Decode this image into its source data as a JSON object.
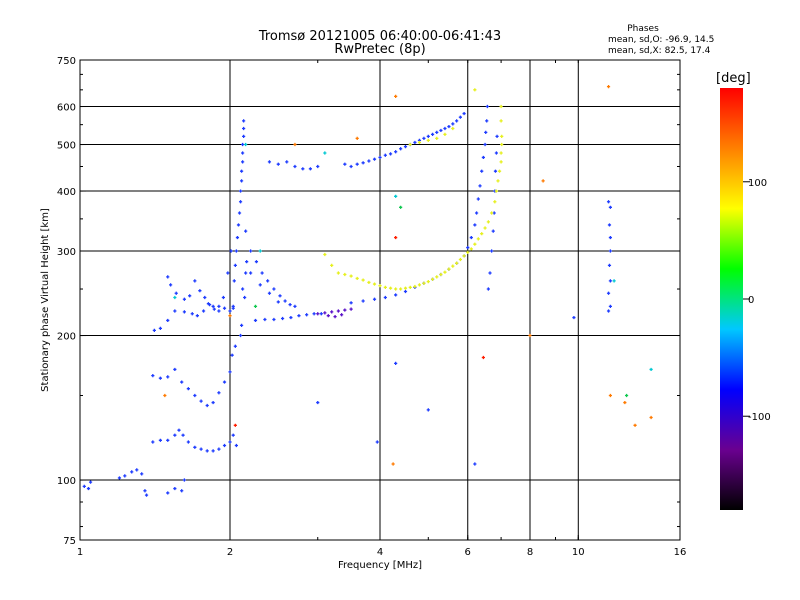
{
  "chart_data": {
    "type": "scatter",
    "title_lines": [
      "Tromsø 20121005 06:40:00-06:41:43",
      "RwPretec (8p)"
    ],
    "xlabel": "Frequency [MHz]",
    "ylabel": "Stationary phase Virtual Height [km]",
    "x_scale": "log",
    "y_scale": "log",
    "xlim": [
      1,
      16
    ],
    "ylim": [
      75,
      750
    ],
    "x_ticks": [
      {
        "value": 1,
        "label": "1"
      },
      {
        "value": 2,
        "label": "2"
      },
      {
        "value": 4,
        "label": "4"
      },
      {
        "value": 6,
        "label": "6"
      },
      {
        "value": 8,
        "label": "8"
      },
      {
        "value": 10,
        "label": "10"
      },
      {
        "value": 16,
        "label": "16"
      }
    ],
    "y_ticks": [
      {
        "value": 75,
        "label": "75"
      },
      {
        "value": 100,
        "label": "100"
      },
      {
        "value": 200,
        "label": "200"
      },
      {
        "value": 300,
        "label": "300"
      },
      {
        "value": 400,
        "label": "400"
      },
      {
        "value": 500,
        "label": "500"
      },
      {
        "value": 600,
        "label": "600"
      },
      {
        "value": 750,
        "label": "750"
      }
    ],
    "x_grid": [
      2,
      4,
      6,
      8,
      10
    ],
    "y_grid": [
      100,
      200,
      300,
      400,
      500,
      600
    ],
    "grid": true,
    "phase_stats": {
      "heading": "Phases",
      "line_o": "mean, sd,O: -96.9, 14.5",
      "line_x": "mean, sd,X:  82.5, 17.4"
    },
    "colorbar": {
      "label": "[deg]",
      "range": [
        -180,
        180
      ],
      "ticks": [
        {
          "value": 100,
          "label": "100"
        },
        {
          "value": 0,
          "label": "0"
        },
        {
          "value": -100,
          "label": "-100"
        }
      ],
      "colors": [
        "#000000",
        "#6a0090",
        "#0000ff",
        "#00c8ff",
        "#00ff00",
        "#ffff00",
        "#ff8000",
        "#ff0000"
      ]
    },
    "series": [
      {
        "phase": -100,
        "color": "#1e3cff",
        "points": [
          [
            1.02,
            97
          ],
          [
            1.04,
            96
          ],
          [
            1.05,
            99
          ],
          [
            1.2,
            101
          ],
          [
            1.23,
            102
          ],
          [
            1.27,
            104
          ],
          [
            1.3,
            105
          ],
          [
            1.33,
            103
          ],
          [
            1.35,
            95
          ],
          [
            1.36,
            93
          ],
          [
            1.5,
            94
          ],
          [
            1.55,
            96
          ],
          [
            1.6,
            95
          ],
          [
            1.62,
            100
          ],
          [
            1.4,
            120
          ],
          [
            1.45,
            121
          ],
          [
            1.5,
            121
          ],
          [
            1.55,
            124
          ],
          [
            1.58,
            127
          ],
          [
            1.61,
            124
          ],
          [
            1.65,
            120
          ],
          [
            1.7,
            117
          ],
          [
            1.75,
            116
          ],
          [
            1.8,
            115
          ],
          [
            1.85,
            115
          ],
          [
            1.9,
            116
          ],
          [
            1.95,
            118
          ],
          [
            2.0,
            120
          ],
          [
            2.03,
            124
          ],
          [
            2.06,
            118
          ],
          [
            1.4,
            165
          ],
          [
            1.45,
            163
          ],
          [
            1.5,
            164
          ],
          [
            1.55,
            170
          ],
          [
            1.6,
            160
          ],
          [
            1.65,
            155
          ],
          [
            1.7,
            150
          ],
          [
            1.75,
            146
          ],
          [
            1.8,
            143
          ],
          [
            1.85,
            145
          ],
          [
            1.9,
            152
          ],
          [
            1.95,
            160
          ],
          [
            2.0,
            168
          ],
          [
            2.02,
            182
          ],
          [
            2.05,
            190
          ],
          [
            1.41,
            205
          ],
          [
            1.45,
            207
          ],
          [
            1.5,
            215
          ],
          [
            1.55,
            225
          ],
          [
            1.62,
            224
          ],
          [
            1.68,
            222
          ],
          [
            1.72,
            220
          ],
          [
            1.77,
            225
          ],
          [
            1.81,
            233
          ],
          [
            1.85,
            230
          ],
          [
            1.9,
            225
          ],
          [
            1.95,
            228
          ],
          [
            2.0,
            225
          ],
          [
            2.03,
            228
          ],
          [
            1.5,
            265
          ],
          [
            1.52,
            255
          ],
          [
            1.56,
            245
          ],
          [
            1.62,
            238
          ],
          [
            1.66,
            242
          ],
          [
            1.7,
            260
          ],
          [
            1.74,
            248
          ],
          [
            1.78,
            240
          ],
          [
            1.82,
            232
          ],
          [
            1.86,
            227
          ],
          [
            1.9,
            230
          ],
          [
            1.94,
            240
          ],
          [
            1.98,
            270
          ],
          [
            2.01,
            300
          ],
          [
            2.03,
            230
          ],
          [
            2.04,
            260
          ],
          [
            2.05,
            280
          ],
          [
            2.06,
            300
          ],
          [
            2.07,
            320
          ],
          [
            2.08,
            340
          ],
          [
            2.09,
            360
          ],
          [
            2.1,
            380
          ],
          [
            2.1,
            400
          ],
          [
            2.11,
            420
          ],
          [
            2.11,
            440
          ],
          [
            2.12,
            460
          ],
          [
            2.12,
            480
          ],
          [
            2.12,
            500
          ],
          [
            2.13,
            520
          ],
          [
            2.13,
            540
          ],
          [
            2.13,
            560
          ],
          [
            2.12,
            250
          ],
          [
            2.14,
            240
          ],
          [
            2.15,
            270
          ],
          [
            2.16,
            285
          ],
          [
            2.1,
            200
          ],
          [
            2.11,
            210
          ],
          [
            2.15,
            330
          ],
          [
            2.2,
            300
          ],
          [
            2.26,
            285
          ],
          [
            2.32,
            270
          ],
          [
            2.38,
            260
          ],
          [
            2.45,
            250
          ],
          [
            2.52,
            242
          ],
          [
            2.58,
            236
          ],
          [
            2.64,
            232
          ],
          [
            2.7,
            230
          ],
          [
            2.2,
            270
          ],
          [
            2.3,
            255
          ],
          [
            2.4,
            245
          ],
          [
            2.5,
            235
          ],
          [
            2.25,
            215
          ],
          [
            2.35,
            216
          ],
          [
            2.45,
            216
          ],
          [
            2.55,
            217
          ],
          [
            2.65,
            218
          ],
          [
            2.75,
            220
          ],
          [
            2.85,
            221
          ],
          [
            2.95,
            222
          ],
          [
            3.05,
            222
          ],
          [
            2.4,
            460
          ],
          [
            2.5,
            455
          ],
          [
            2.6,
            460
          ],
          [
            2.7,
            450
          ],
          [
            2.8,
            445
          ],
          [
            2.9,
            445
          ],
          [
            3.0,
            450
          ],
          [
            3.4,
            455
          ],
          [
            3.5,
            450
          ],
          [
            3.6,
            455
          ],
          [
            3.7,
            458
          ],
          [
            3.8,
            462
          ],
          [
            3.9,
            466
          ],
          [
            4.0,
            470
          ],
          [
            4.1,
            475
          ],
          [
            4.2,
            478
          ],
          [
            4.3,
            483
          ],
          [
            4.4,
            490
          ],
          [
            4.5,
            495
          ],
          [
            4.6,
            500
          ],
          [
            4.7,
            505
          ],
          [
            4.8,
            510
          ],
          [
            4.9,
            515
          ],
          [
            5.0,
            520
          ],
          [
            5.1,
            525
          ],
          [
            5.2,
            530
          ],
          [
            5.3,
            535
          ],
          [
            5.4,
            540
          ],
          [
            5.5,
            545
          ],
          [
            5.6,
            552
          ],
          [
            5.7,
            560
          ],
          [
            5.8,
            570
          ],
          [
            5.9,
            580
          ],
          [
            3.5,
            234
          ],
          [
            3.7,
            236
          ],
          [
            3.9,
            238
          ],
          [
            4.1,
            240
          ],
          [
            4.3,
            243
          ],
          [
            4.5,
            247
          ],
          [
            4.7,
            252
          ],
          [
            4.9,
            257
          ],
          [
            5.1,
            262
          ],
          [
            5.3,
            268
          ],
          [
            5.5,
            275
          ],
          [
            5.7,
            283
          ],
          [
            5.9,
            293
          ],
          [
            6.0,
            305
          ],
          [
            6.1,
            320
          ],
          [
            6.2,
            340
          ],
          [
            6.25,
            360
          ],
          [
            6.3,
            385
          ],
          [
            6.35,
            410
          ],
          [
            6.4,
            440
          ],
          [
            6.45,
            470
          ],
          [
            6.5,
            500
          ],
          [
            6.52,
            530
          ],
          [
            6.55,
            560
          ],
          [
            6.57,
            600
          ],
          [
            6.6,
            250
          ],
          [
            6.65,
            270
          ],
          [
            6.7,
            300
          ],
          [
            6.75,
            330
          ],
          [
            6.78,
            360
          ],
          [
            6.8,
            400
          ],
          [
            6.82,
            440
          ],
          [
            6.85,
            480
          ],
          [
            6.87,
            520
          ],
          [
            11.5,
            225
          ],
          [
            11.6,
            230
          ],
          [
            11.5,
            245
          ],
          [
            11.6,
            260
          ],
          [
            11.55,
            280
          ],
          [
            11.6,
            300
          ],
          [
            11.6,
            320
          ],
          [
            11.55,
            340
          ],
          [
            11.6,
            370
          ],
          [
            11.5,
            380
          ],
          [
            9.8,
            218
          ],
          [
            4.3,
            175
          ],
          [
            3.95,
            120
          ],
          [
            3.0,
            145
          ],
          [
            5.0,
            140
          ],
          [
            6.2,
            108
          ]
        ]
      },
      {
        "phase": -140,
        "color": "#5a12c8",
        "points": [
          [
            3.0,
            222
          ],
          [
            3.1,
            223
          ],
          [
            3.2,
            224
          ],
          [
            3.3,
            225
          ],
          [
            3.4,
            226
          ],
          [
            3.5,
            227
          ],
          [
            3.15,
            220
          ],
          [
            3.25,
            219
          ],
          [
            3.35,
            221
          ]
        ]
      },
      {
        "phase": 85,
        "color": "#e6f01e",
        "points": [
          [
            3.3,
            270
          ],
          [
            3.4,
            268
          ],
          [
            3.5,
            266
          ],
          [
            3.6,
            263
          ],
          [
            3.7,
            261
          ],
          [
            3.8,
            258
          ],
          [
            3.9,
            256
          ],
          [
            4.0,
            254
          ],
          [
            4.1,
            252
          ],
          [
            4.2,
            251
          ],
          [
            4.3,
            250
          ],
          [
            4.4,
            250
          ],
          [
            4.5,
            251
          ],
          [
            4.6,
            252
          ],
          [
            4.7,
            253
          ],
          [
            4.8,
            255
          ],
          [
            4.9,
            257
          ],
          [
            5.0,
            259
          ],
          [
            5.1,
            262
          ],
          [
            5.2,
            265
          ],
          [
            5.3,
            268
          ],
          [
            5.4,
            271
          ],
          [
            5.5,
            275
          ],
          [
            5.6,
            279
          ],
          [
            5.7,
            283
          ],
          [
            5.8,
            288
          ],
          [
            5.9,
            293
          ],
          [
            6.0,
            298
          ],
          [
            6.1,
            303
          ],
          [
            6.2,
            310
          ],
          [
            6.3,
            318
          ],
          [
            6.4,
            326
          ],
          [
            6.5,
            335
          ],
          [
            6.6,
            345
          ],
          [
            6.7,
            360
          ],
          [
            6.8,
            380
          ],
          [
            6.85,
            400
          ],
          [
            6.9,
            420
          ],
          [
            6.95,
            440
          ],
          [
            7.0,
            460
          ],
          [
            7.0,
            480
          ],
          [
            7.02,
            500
          ],
          [
            7.02,
            520
          ],
          [
            7.0,
            560
          ],
          [
            7.0,
            600
          ],
          [
            3.2,
            280
          ],
          [
            3.1,
            295
          ],
          [
            4.6,
            500
          ],
          [
            4.8,
            505
          ],
          [
            5.0,
            510
          ],
          [
            5.2,
            515
          ],
          [
            5.4,
            525
          ],
          [
            5.6,
            540
          ],
          [
            6.2,
            650
          ]
        ]
      },
      {
        "phase": 0,
        "color": "#10c850",
        "points": [
          [
            4.4,
            370
          ],
          [
            2.25,
            230
          ],
          [
            12.5,
            150
          ]
        ]
      },
      {
        "phase": 150,
        "color": "#ff7a00",
        "points": [
          [
            2.7,
            500
          ],
          [
            3.6,
            515
          ],
          [
            4.3,
            630
          ],
          [
            11.5,
            660
          ],
          [
            8.5,
            420
          ],
          [
            8.0,
            200
          ],
          [
            4.25,
            108
          ],
          [
            11.6,
            150
          ],
          [
            12.4,
            145
          ],
          [
            13.0,
            130
          ],
          [
            14.0,
            135
          ],
          [
            1.48,
            150
          ],
          [
            2.0,
            220
          ]
        ]
      },
      {
        "phase": 40,
        "color": "#00c8d2",
        "points": [
          [
            3.1,
            480
          ],
          [
            4.3,
            390
          ],
          [
            2.3,
            300
          ],
          [
            1.55,
            240
          ],
          [
            14.0,
            170
          ],
          [
            11.8,
            260
          ],
          [
            2.15,
            500
          ]
        ]
      },
      {
        "phase": 175,
        "color": "#ff1e00",
        "points": [
          [
            4.3,
            320
          ],
          [
            6.45,
            180
          ],
          [
            2.05,
            130
          ]
        ]
      }
    ]
  }
}
